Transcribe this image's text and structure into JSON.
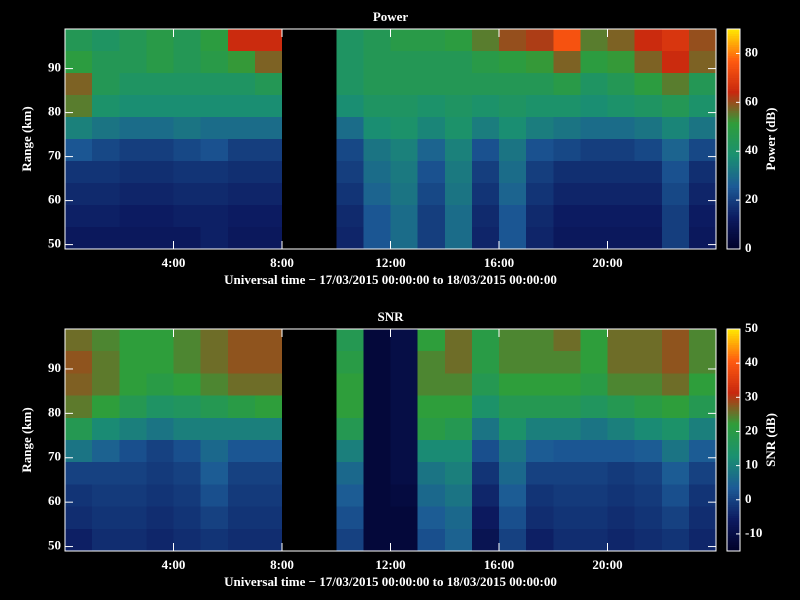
{
  "chart_data": [
    {
      "type": "heatmap",
      "title": "Power",
      "xlabel": "Universal time − 17/03/2015 00:00:00 to 18/03/2015 00:00:00",
      "ylabel": "Range (km)",
      "colorbar_label": "Power (dB)",
      "x": [
        0,
        1,
        2,
        3,
        4,
        5,
        6,
        7,
        8,
        9,
        10,
        11,
        12,
        13,
        14,
        15,
        16,
        17,
        18,
        19,
        20,
        21,
        22,
        23,
        24
      ],
      "y": [
        49,
        54,
        59,
        64,
        69,
        74,
        79,
        84,
        89,
        94,
        99
      ],
      "values": [
        [
          12,
          12,
          12,
          12,
          12,
          14,
          12,
          12,
          null,
          null,
          15,
          25,
          30,
          20,
          30,
          15,
          25,
          15,
          12,
          12,
          12,
          12,
          20,
          12
        ],
        [
          14,
          14,
          13,
          13,
          14,
          14,
          13,
          13,
          null,
          null,
          16,
          25,
          30,
          20,
          30,
          16,
          25,
          16,
          13,
          13,
          13,
          13,
          20,
          13
        ],
        [
          16,
          16,
          15,
          15,
          16,
          16,
          15,
          15,
          null,
          null,
          18,
          28,
          32,
          22,
          32,
          18,
          28,
          18,
          15,
          15,
          15,
          15,
          22,
          15
        ],
        [
          18,
          18,
          17,
          17,
          18,
          18,
          17,
          17,
          null,
          null,
          20,
          30,
          33,
          24,
          33,
          20,
          30,
          20,
          17,
          17,
          17,
          17,
          24,
          17
        ],
        [
          25,
          22,
          20,
          20,
          22,
          24,
          20,
          20,
          null,
          null,
          22,
          32,
          35,
          28,
          35,
          24,
          32,
          24,
          22,
          20,
          20,
          22,
          28,
          22
        ],
        [
          35,
          32,
          30,
          30,
          32,
          30,
          30,
          30,
          null,
          null,
          30,
          38,
          40,
          36,
          40,
          34,
          38,
          34,
          32,
          30,
          30,
          32,
          36,
          32
        ],
        [
          55,
          40,
          38,
          38,
          38,
          38,
          38,
          38,
          null,
          null,
          38,
          42,
          42,
          40,
          42,
          40,
          42,
          40,
          40,
          38,
          40,
          42,
          45,
          40
        ],
        [
          58,
          45,
          42,
          42,
          42,
          42,
          42,
          45,
          null,
          null,
          42,
          45,
          45,
          45,
          45,
          45,
          45,
          45,
          48,
          42,
          45,
          50,
          55,
          45
        ],
        [
          50,
          45,
          45,
          48,
          45,
          48,
          52,
          58,
          null,
          null,
          42,
          45,
          45,
          45,
          45,
          48,
          50,
          52,
          58,
          50,
          52,
          58,
          65,
          58
        ],
        [
          45,
          42,
          45,
          48,
          45,
          50,
          65,
          65,
          null,
          null,
          42,
          45,
          48,
          48,
          50,
          55,
          60,
          62,
          75,
          55,
          58,
          65,
          68,
          60
        ]
      ],
      "xlim": [
        0,
        24
      ],
      "ylim": [
        49,
        99
      ],
      "xticks": [
        {
          "value": 4,
          "label": "4:00"
        },
        {
          "value": 8,
          "label": "8:00"
        },
        {
          "value": 12,
          "label": "12:00"
        },
        {
          "value": 16,
          "label": "16:00"
        },
        {
          "value": 20,
          "label": "20:00"
        }
      ],
      "yticks": [
        50,
        60,
        70,
        80,
        90
      ],
      "zlim": [
        0,
        90
      ],
      "zticks": [
        0,
        20,
        40,
        60,
        80
      ],
      "colormap": [
        "#000028",
        "#0c1a60",
        "#1c5a96",
        "#1a9070",
        "#2e9e3a",
        "#c8280e",
        "#ff5a10",
        "#ffe800"
      ]
    },
    {
      "type": "heatmap",
      "title": "SNR",
      "xlabel": "Universal time − 17/03/2015 00:00:00 to 18/03/2015 00:00:00",
      "ylabel": "Range (km)",
      "colorbar_label": "SNR (dB)",
      "x": [
        0,
        1,
        2,
        3,
        4,
        5,
        6,
        7,
        8,
        9,
        10,
        11,
        12,
        13,
        14,
        15,
        16,
        17,
        18,
        19,
        20,
        21,
        22,
        23,
        24
      ],
      "y": [
        49,
        54,
        59,
        64,
        69,
        74,
        79,
        84,
        89,
        94,
        99
      ],
      "values": [
        [
          -5,
          -3,
          -3,
          -4,
          -3,
          -2,
          -3,
          -3,
          null,
          null,
          0,
          -12,
          -12,
          2,
          5,
          -8,
          0,
          -5,
          -3,
          -3,
          -4,
          -3,
          -2,
          -4
        ],
        [
          -3,
          -2,
          -2,
          -3,
          -2,
          0,
          -2,
          -2,
          null,
          null,
          2,
          -12,
          -12,
          4,
          6,
          -6,
          2,
          -3,
          -2,
          -2,
          -3,
          -2,
          0,
          -3
        ],
        [
          -2,
          -1,
          -1,
          -2,
          -1,
          2,
          -1,
          -1,
          null,
          null,
          4,
          -12,
          -11,
          6,
          8,
          -4,
          4,
          -2,
          -1,
          -1,
          -2,
          -1,
          2,
          -2
        ],
        [
          0,
          0,
          0,
          -1,
          0,
          4,
          0,
          0,
          null,
          null,
          6,
          -12,
          -10,
          8,
          10,
          -2,
          6,
          0,
          0,
          0,
          -1,
          0,
          4,
          0
        ],
        [
          8,
          5,
          2,
          0,
          2,
          6,
          3,
          3,
          null,
          null,
          10,
          -12,
          -10,
          12,
          12,
          2,
          8,
          4,
          3,
          3,
          3,
          4,
          8,
          4
        ],
        [
          18,
          12,
          10,
          8,
          10,
          10,
          10,
          10,
          null,
          null,
          18,
          -12,
          -10,
          20,
          18,
          8,
          14,
          10,
          10,
          8,
          10,
          12,
          14,
          10
        ],
        [
          25,
          22,
          18,
          15,
          16,
          18,
          20,
          22,
          null,
          null,
          22,
          -12,
          -10,
          22,
          22,
          14,
          18,
          18,
          18,
          16,
          18,
          20,
          22,
          18
        ],
        [
          27,
          25,
          22,
          20,
          22,
          24,
          26,
          26,
          null,
          null,
          22,
          -12,
          -10,
          24,
          24,
          18,
          22,
          22,
          22,
          20,
          24,
          24,
          26,
          22
        ],
        [
          28,
          25,
          22,
          22,
          24,
          26,
          28,
          28,
          null,
          null,
          20,
          -12,
          -10,
          24,
          26,
          20,
          24,
          24,
          24,
          22,
          26,
          26,
          28,
          24
        ],
        [
          26,
          24,
          22,
          22,
          24,
          26,
          28,
          28,
          null,
          null,
          18,
          -12,
          -10,
          22,
          26,
          20,
          24,
          24,
          26,
          22,
          26,
          26,
          28,
          24
        ]
      ],
      "xlim": [
        0,
        24
      ],
      "ylim": [
        49,
        99
      ],
      "xticks": [
        {
          "value": 4,
          "label": "4:00"
        },
        {
          "value": 8,
          "label": "8:00"
        },
        {
          "value": 12,
          "label": "12:00"
        },
        {
          "value": 16,
          "label": "16:00"
        },
        {
          "value": 20,
          "label": "20:00"
        }
      ],
      "yticks": [
        50,
        60,
        70,
        80,
        90
      ],
      "zlim": [
        -15,
        50
      ],
      "zticks": [
        -10,
        0,
        10,
        20,
        30,
        40,
        50
      ],
      "colormap": [
        "#000028",
        "#0c1a60",
        "#1c5a96",
        "#1a9070",
        "#2e9e3a",
        "#c8280e",
        "#ff5a10",
        "#ffe800"
      ]
    }
  ]
}
